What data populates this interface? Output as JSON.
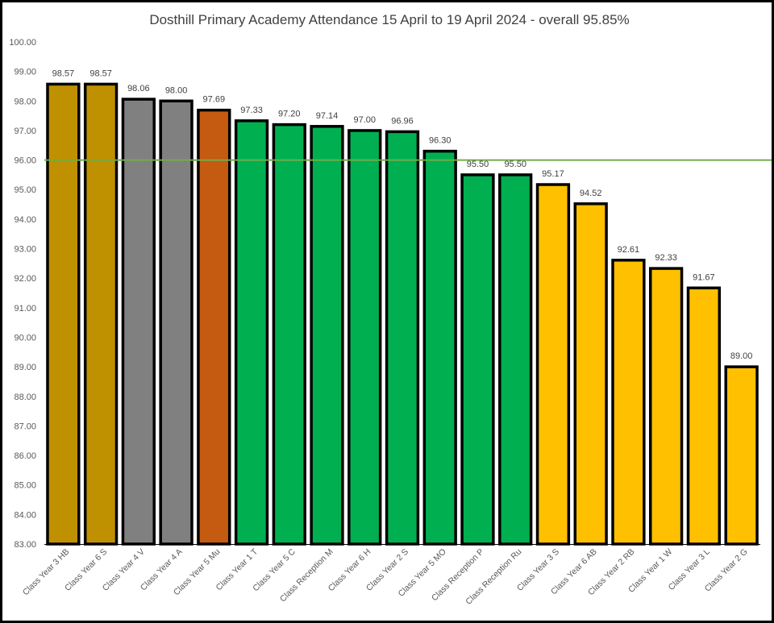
{
  "chart_data": {
    "type": "bar",
    "title": "Dosthill Primary Academy Attendance 15 April to 19 April 2024 - overall 95.85%",
    "categories": [
      "Class Year 3 HB",
      "Class Year 6 S",
      "Class Year 4 V",
      "Class Year 4 A",
      "Class Year 5 Mu",
      "Class Year 1 T",
      "Class Year 5 C",
      "Class Reception M",
      "Class Year 6 H",
      "Class Year 2 S",
      "Class Year 5 MO",
      "Class Reception P",
      "Class Reception Ru",
      "Class Year 3 S",
      "Class Year 6 AB",
      "Class Year 2 RB",
      "Class Year 1 W",
      "Class Year 3 L",
      "Class Year 2 G"
    ],
    "values": [
      98.57,
      98.57,
      98.06,
      98.0,
      97.69,
      97.33,
      97.2,
      97.14,
      97.0,
      96.96,
      96.3,
      95.5,
      95.5,
      95.17,
      94.52,
      92.61,
      92.33,
      91.67,
      89.0
    ],
    "data_labels": [
      "98.57",
      "98.57",
      "98.06",
      "98.00",
      "97.69",
      "97.33",
      "97.20",
      "97.14",
      "97.00",
      "96.96",
      "96.30",
      "95.50",
      "95.50",
      "95.17",
      "94.52",
      "92.61",
      "92.33",
      "91.67",
      "89.00"
    ],
    "bar_colors": [
      "#bf9000",
      "#bf9000",
      "#808080",
      "#808080",
      "#c55a11",
      "#00b050",
      "#00b050",
      "#00b050",
      "#00b050",
      "#00b050",
      "#00b050",
      "#00b050",
      "#00b050",
      "#ffc000",
      "#ffc000",
      "#ffc000",
      "#ffc000",
      "#ffc000",
      "#ffc000"
    ],
    "ylim": [
      83,
      100
    ],
    "y_ticks": [
      "83.00",
      "84.00",
      "85.00",
      "86.00",
      "87.00",
      "88.00",
      "89.00",
      "90.00",
      "91.00",
      "92.00",
      "93.00",
      "94.00",
      "95.00",
      "96.00",
      "97.00",
      "98.00",
      "99.00",
      "100.00"
    ],
    "target_line": {
      "value": 96.0,
      "color": "#70ad47"
    },
    "grid": false,
    "legend": "none"
  }
}
